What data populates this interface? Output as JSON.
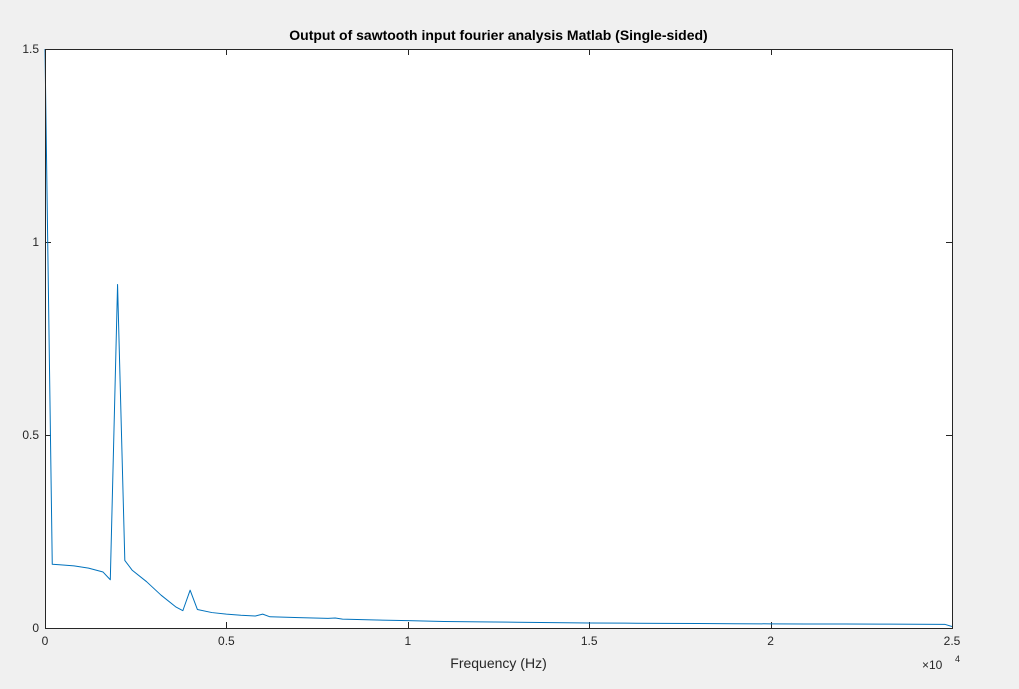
{
  "figure": {
    "background_color": "#f0f0f0",
    "axes_background_color": "#ffffff",
    "axes_color": "#262626"
  },
  "chart_data": {
    "type": "line",
    "title": "Output of sawtooth input fourier analysis Matlab (Single-sided)",
    "xlabel": "Frequency (Hz)",
    "ylabel": "",
    "x_exponent_base": "×10",
    "x_exponent_power": "4",
    "xlim": [
      0,
      25000
    ],
    "ylim": [
      0,
      1.5
    ],
    "xticks": [
      0,
      5000,
      10000,
      15000,
      20000,
      25000
    ],
    "xtick_labels": [
      "0",
      "0.5",
      "1",
      "1.5",
      "2",
      "2.5"
    ],
    "yticks": [
      0,
      0.5,
      1,
      1.5
    ],
    "ytick_labels": [
      "0",
      "0.5",
      "1",
      "1.5"
    ],
    "grid": false,
    "series": [
      {
        "color": "#0072bd",
        "x": [
          0,
          200,
          400,
          800,
          1200,
          1600,
          1800,
          2000,
          2200,
          2400,
          2800,
          3200,
          3600,
          3800,
          4000,
          4200,
          4600,
          5000,
          5400,
          5800,
          6000,
          6200,
          7000,
          7800,
          8000,
          8200,
          9000,
          10000,
          11000,
          12000,
          13000,
          14000,
          15000,
          16000,
          17000,
          18000,
          19000,
          20000,
          21000,
          22000,
          23000,
          24000,
          24800,
          25000
        ],
        "y": [
          1.5,
          0.165,
          0.164,
          0.161,
          0.155,
          0.145,
          0.125,
          0.89,
          0.175,
          0.15,
          0.12,
          0.085,
          0.055,
          0.045,
          0.098,
          0.048,
          0.04,
          0.036,
          0.033,
          0.031,
          0.036,
          0.029,
          0.027,
          0.025,
          0.026,
          0.023,
          0.021,
          0.019,
          0.017,
          0.016,
          0.015,
          0.014,
          0.013,
          0.0125,
          0.012,
          0.0115,
          0.011,
          0.0108,
          0.0105,
          0.0102,
          0.01,
          0.0098,
          0.0095,
          0.004
        ]
      }
    ]
  }
}
